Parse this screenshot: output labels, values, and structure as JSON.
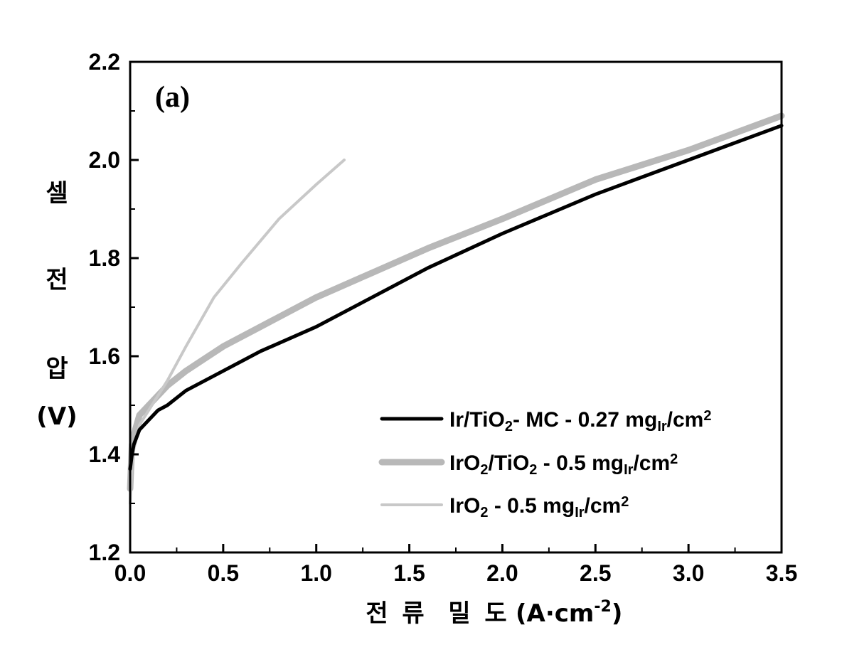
{
  "chart_data": {
    "type": "line",
    "panel_label": "(a)",
    "xlabel": {
      "korean_chars": [
        "전",
        "류",
        "밀",
        "도"
      ],
      "unit_prefix": "(A·cm",
      "unit_sup": "-2",
      "unit_suffix": ")"
    },
    "ylabel": {
      "korean_chars": [
        "셀",
        "전",
        "압"
      ],
      "unit": "(V)"
    },
    "xlim": [
      0.0,
      3.5
    ],
    "ylim": [
      1.2,
      2.2
    ],
    "xticks": [
      "0.0",
      "0.5",
      "1.0",
      "1.5",
      "2.0",
      "2.5",
      "3.0",
      "3.5"
    ],
    "yticks": [
      "1.2",
      "1.4",
      "1.6",
      "1.8",
      "2.0",
      "2.2"
    ],
    "series": [
      {
        "name": "Ir/TiO2- MC - 0.27 mgIr/cm2",
        "legend_parts": [
          {
            "t": "Ir/TiO"
          },
          {
            "t": "2",
            "s": "sub"
          },
          {
            "t": "- MC - 0.27 mg"
          },
          {
            "t": "Ir",
            "s": "sub"
          },
          {
            "t": "/cm"
          },
          {
            "t": "2",
            "s": "sup"
          }
        ],
        "color": "#000000",
        "x": [
          0.0,
          0.01,
          0.02,
          0.05,
          0.1,
          0.15,
          0.2,
          0.3,
          0.5,
          0.7,
          1.0,
          1.3,
          1.6,
          2.0,
          2.5,
          3.0,
          3.5
        ],
        "y": [
          1.37,
          1.4,
          1.42,
          1.45,
          1.47,
          1.49,
          1.5,
          1.53,
          1.57,
          1.61,
          1.66,
          1.72,
          1.78,
          1.85,
          1.93,
          2.0,
          2.07
        ]
      },
      {
        "name": "IrO2/TiO2 - 0.5 mgIr/cm2",
        "legend_parts": [
          {
            "t": "IrO"
          },
          {
            "t": "2",
            "s": "sub"
          },
          {
            "t": "/TiO"
          },
          {
            "t": "2",
            "s": "sub"
          },
          {
            "t": " - 0.5 mg"
          },
          {
            "t": "Ir",
            "s": "sub"
          },
          {
            "t": "/cm"
          },
          {
            "t": "2",
            "s": "sup"
          }
        ],
        "color": "#b8b8b8",
        "x": [
          0.0,
          0.01,
          0.02,
          0.05,
          0.1,
          0.2,
          0.3,
          0.5,
          0.7,
          1.0,
          1.3,
          1.6,
          2.0,
          2.5,
          3.0,
          3.5
        ],
        "y": [
          1.33,
          1.42,
          1.44,
          1.48,
          1.5,
          1.54,
          1.57,
          1.62,
          1.66,
          1.72,
          1.77,
          1.82,
          1.88,
          1.96,
          2.02,
          2.09
        ]
      },
      {
        "name": "IrO2 - 0.5 mgIr/cm2",
        "legend_parts": [
          {
            "t": "IrO"
          },
          {
            "t": "2",
            "s": "sub"
          },
          {
            "t": " - 0.5 mg"
          },
          {
            "t": "Ir",
            "s": "sub"
          },
          {
            "t": "/cm"
          },
          {
            "t": "2",
            "s": "sup"
          }
        ],
        "color": "#c8c8c8",
        "x": [
          0.0,
          0.01,
          0.02,
          0.05,
          0.1,
          0.2,
          0.3,
          0.45,
          0.6,
          0.8,
          1.0,
          1.15
        ],
        "y": [
          1.3,
          1.38,
          1.41,
          1.46,
          1.49,
          1.55,
          1.62,
          1.72,
          1.79,
          1.88,
          1.95,
          2.0
        ]
      }
    ],
    "legend_position": "lower-right",
    "grid": false
  }
}
